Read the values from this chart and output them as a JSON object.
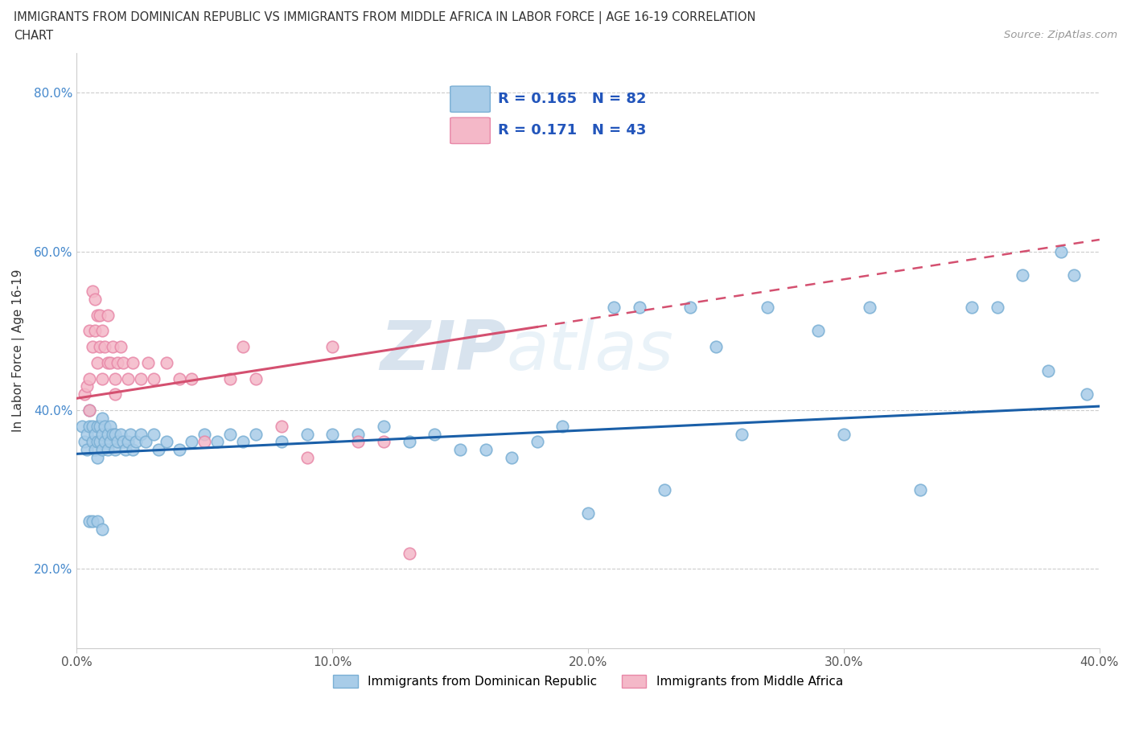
{
  "title_line1": "IMMIGRANTS FROM DOMINICAN REPUBLIC VS IMMIGRANTS FROM MIDDLE AFRICA IN LABOR FORCE | AGE 16-19 CORRELATION",
  "title_line2": "CHART",
  "source_text": "Source: ZipAtlas.com",
  "ylabel": "In Labor Force | Age 16-19",
  "xlim": [
    0.0,
    0.4
  ],
  "ylim": [
    0.1,
    0.85
  ],
  "xtick_labels": [
    "0.0%",
    "10.0%",
    "20.0%",
    "30.0%",
    "40.0%"
  ],
  "xtick_values": [
    0.0,
    0.1,
    0.2,
    0.3,
    0.4
  ],
  "ytick_labels": [
    "20.0%",
    "40.0%",
    "60.0%",
    "80.0%"
  ],
  "ytick_values": [
    0.2,
    0.4,
    0.6,
    0.8
  ],
  "blue_color": "#a8cce8",
  "blue_edge_color": "#7aafd4",
  "pink_color": "#f4b8c8",
  "pink_edge_color": "#e888a8",
  "blue_line_color": "#1a5fa8",
  "pink_line_color": "#d45070",
  "pink_line_solid_end": 0.18,
  "R_blue": 0.165,
  "N_blue": 82,
  "R_pink": 0.171,
  "N_pink": 43,
  "watermark_zip": "ZIP",
  "watermark_atlas": "atlas",
  "legend_label_blue": "Immigrants from Dominican Republic",
  "legend_label_pink": "Immigrants from Middle Africa",
  "blue_scatter_x": [
    0.002,
    0.003,
    0.004,
    0.004,
    0.005,
    0.005,
    0.006,
    0.006,
    0.007,
    0.007,
    0.008,
    0.008,
    0.008,
    0.009,
    0.009,
    0.01,
    0.01,
    0.01,
    0.011,
    0.011,
    0.012,
    0.012,
    0.013,
    0.013,
    0.014,
    0.015,
    0.015,
    0.016,
    0.017,
    0.018,
    0.019,
    0.02,
    0.021,
    0.022,
    0.023,
    0.025,
    0.027,
    0.03,
    0.032,
    0.035,
    0.04,
    0.045,
    0.05,
    0.055,
    0.06,
    0.065,
    0.07,
    0.08,
    0.09,
    0.1,
    0.11,
    0.12,
    0.13,
    0.14,
    0.15,
    0.16,
    0.17,
    0.18,
    0.19,
    0.2,
    0.21,
    0.22,
    0.23,
    0.24,
    0.25,
    0.26,
    0.27,
    0.29,
    0.3,
    0.31,
    0.33,
    0.35,
    0.36,
    0.37,
    0.38,
    0.385,
    0.39,
    0.395,
    0.005,
    0.006,
    0.008,
    0.01
  ],
  "blue_scatter_y": [
    0.38,
    0.36,
    0.35,
    0.37,
    0.38,
    0.4,
    0.36,
    0.38,
    0.35,
    0.37,
    0.36,
    0.38,
    0.34,
    0.36,
    0.38,
    0.35,
    0.37,
    0.39,
    0.36,
    0.38,
    0.35,
    0.37,
    0.36,
    0.38,
    0.37,
    0.35,
    0.37,
    0.36,
    0.37,
    0.36,
    0.35,
    0.36,
    0.37,
    0.35,
    0.36,
    0.37,
    0.36,
    0.37,
    0.35,
    0.36,
    0.35,
    0.36,
    0.37,
    0.36,
    0.37,
    0.36,
    0.37,
    0.36,
    0.37,
    0.37,
    0.37,
    0.38,
    0.36,
    0.37,
    0.35,
    0.35,
    0.34,
    0.36,
    0.38,
    0.27,
    0.53,
    0.53,
    0.3,
    0.53,
    0.48,
    0.37,
    0.53,
    0.5,
    0.37,
    0.53,
    0.3,
    0.53,
    0.53,
    0.57,
    0.45,
    0.6,
    0.57,
    0.42,
    0.26,
    0.26,
    0.26,
    0.25
  ],
  "pink_scatter_x": [
    0.003,
    0.004,
    0.005,
    0.005,
    0.006,
    0.006,
    0.007,
    0.007,
    0.008,
    0.008,
    0.009,
    0.009,
    0.01,
    0.01,
    0.011,
    0.012,
    0.012,
    0.013,
    0.014,
    0.015,
    0.016,
    0.017,
    0.018,
    0.02,
    0.022,
    0.025,
    0.028,
    0.03,
    0.035,
    0.04,
    0.045,
    0.05,
    0.06,
    0.065,
    0.07,
    0.08,
    0.09,
    0.1,
    0.11,
    0.12,
    0.13,
    0.005,
    0.015
  ],
  "pink_scatter_y": [
    0.42,
    0.43,
    0.44,
    0.5,
    0.55,
    0.48,
    0.5,
    0.54,
    0.46,
    0.52,
    0.48,
    0.52,
    0.44,
    0.5,
    0.48,
    0.46,
    0.52,
    0.46,
    0.48,
    0.44,
    0.46,
    0.48,
    0.46,
    0.44,
    0.46,
    0.44,
    0.46,
    0.44,
    0.46,
    0.44,
    0.44,
    0.36,
    0.44,
    0.48,
    0.44,
    0.38,
    0.34,
    0.48,
    0.36,
    0.36,
    0.22,
    0.4,
    0.42
  ],
  "blue_trend_x0": 0.0,
  "blue_trend_y0": 0.345,
  "blue_trend_x1": 0.4,
  "blue_trend_y1": 0.405,
  "pink_trend_x0": 0.0,
  "pink_trend_y0": 0.415,
  "pink_trend_x1": 0.4,
  "pink_trend_y1": 0.615
}
